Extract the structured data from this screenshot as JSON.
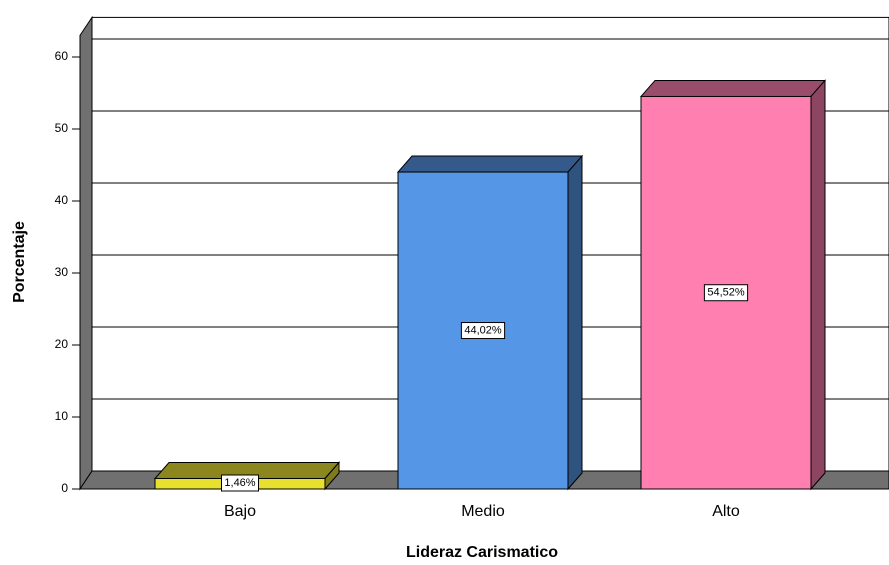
{
  "chart_data": {
    "type": "bar3d",
    "x_label": "Lideraz Carismatico",
    "y_label": "Porcentaje",
    "categories": [
      "Bajo",
      "Medio",
      "Alto"
    ],
    "values": [
      1.46,
      44.02,
      54.52
    ],
    "value_labels": [
      "1,46%",
      "44,02%",
      "54,52%"
    ],
    "colors": [
      "#e8e030",
      "#5596e6",
      "#ff80b0"
    ],
    "ylim": [
      0,
      63
    ],
    "yticks": [
      0,
      10,
      20,
      30,
      40,
      50,
      60
    ],
    "grid": true
  }
}
